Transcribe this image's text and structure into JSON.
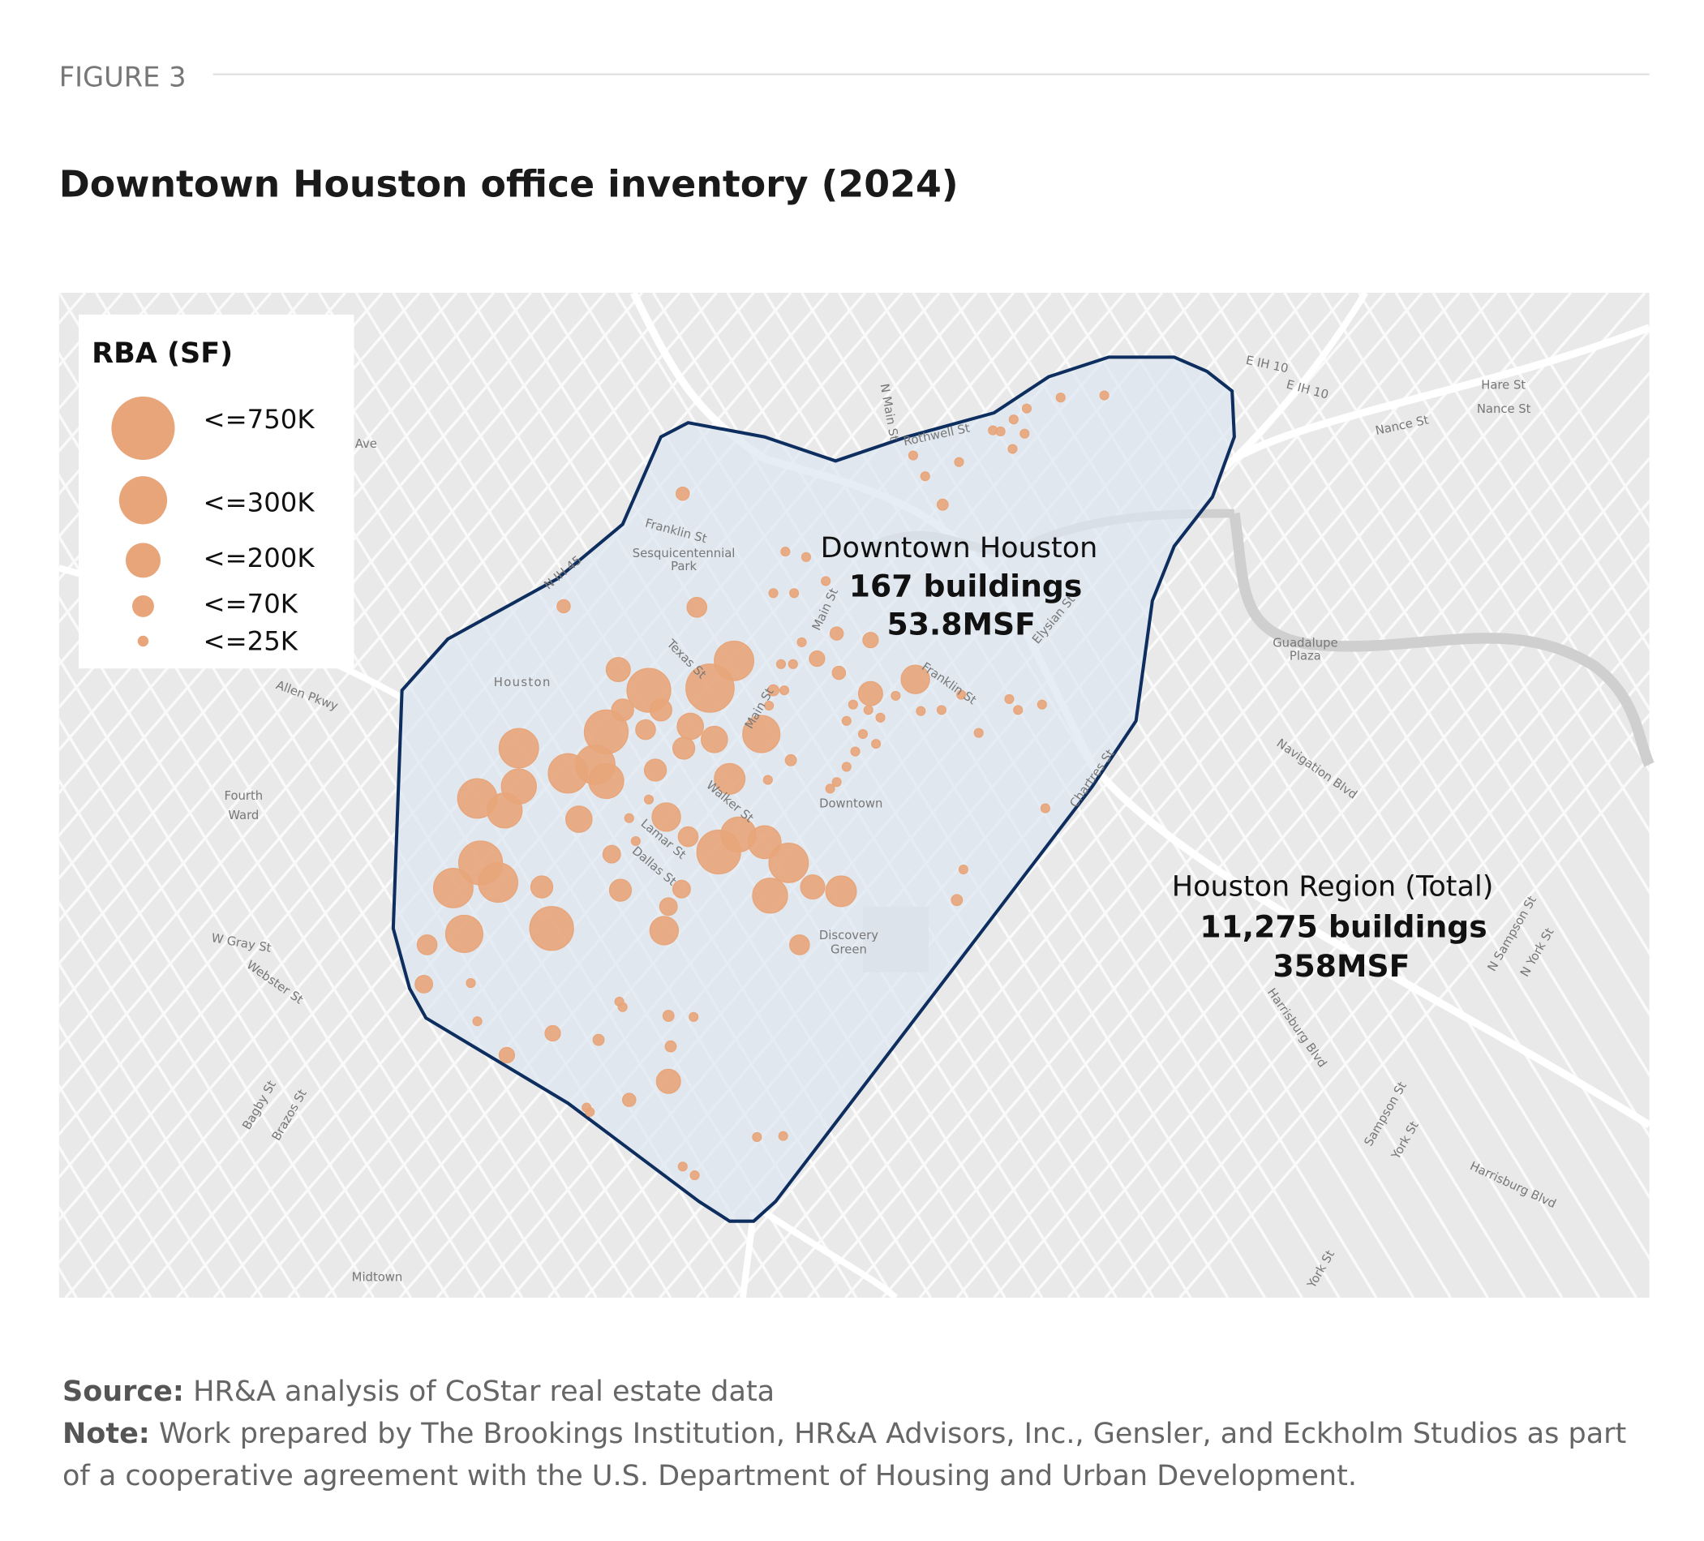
{
  "figure_label": "FIGURE 3",
  "title": "Downtown Houston office inventory (2024)",
  "legend": {
    "title": "RBA (SF)",
    "items": [
      "<=750K",
      "<=300K",
      "<=200K",
      "<=70K",
      "<=25K"
    ]
  },
  "annotations": {
    "downtown": [
      "Downtown Houston",
      "167 buildings",
      "53.8MSF"
    ],
    "region": [
      "Houston Region (Total)",
      "11,275 buildings",
      "358MSF"
    ]
  },
  "map_labels": {
    "houston": "Houston",
    "fourth_ward": [
      "Fourth",
      "Ward"
    ],
    "downtown": "Downtown",
    "midtown": "Midtown",
    "discovery_green": [
      "Discovery",
      "Green"
    ],
    "sesquicentennial": [
      "Sesquicentennial",
      "Park"
    ],
    "guadalupe": [
      "Guadalupe",
      "Plaza"
    ],
    "franklin": "Franklin St",
    "franklin2": "Franklin St",
    "texas": "Texas St",
    "main": "Main St",
    "main2": "Main St",
    "walker": "Walker St",
    "lamar": "Lamar St",
    "dallas": "Dallas St",
    "allen": "Allen Pkwy",
    "wgray": "W Gray St",
    "webster": "Webster St",
    "bagby": "Bagby St",
    "brazos": "Brazos St",
    "navigation": "Navigation Blvd",
    "harrisburg": "Harrisburg Blvd",
    "harrisburg2": "Harrisburg Blvd",
    "nance": "Nance St",
    "nance2": "Nance St",
    "hare": "Hare St",
    "eih10": "E IH 10",
    "eih10b": "E IH 10",
    "nsampson": "N Sampson St",
    "nyork": "N York St",
    "sampson": "Sampson St",
    "york": "York St",
    "york2": "York St",
    "nmain": "N Main St",
    "rothwell": "Rothwell St",
    "elysian": "Elysian St",
    "nih45": "N IH 45",
    "chartres": "Chartres St",
    "ave": "Ave"
  },
  "source": {
    "label": "Source:",
    "text": "HR&A analysis of CoStar real estate data"
  },
  "note": {
    "label": "Note:",
    "text": "Work prepared by The Brookings Institution, HR&A Advisors, Inc., Gensler, and Eckholm Studios as part of a cooperative agreement with the U.S. Department of Housing and Urban Development."
  }
}
